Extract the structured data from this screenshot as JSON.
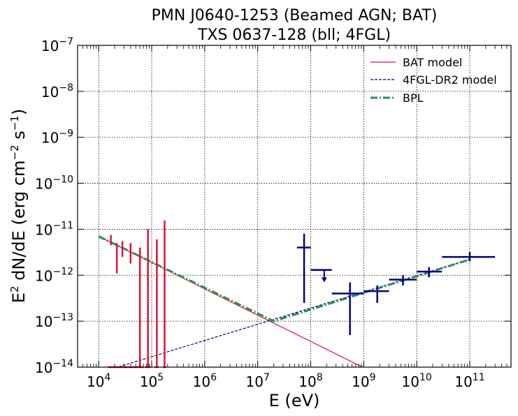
{
  "chart_data": {
    "type": "scatter",
    "title_line1": "PMN J0640-1253 (Beamed AGN; BAT)",
    "title_line2": "TXS 0637-128 (bll; 4FGL)",
    "xlabel": "E (eV)",
    "ylabel_main": "E",
    "ylabel_sup": "2",
    "ylabel_rest": " dN/dE (erg cm",
    "ylabel_sup2": "−2",
    "ylabel_rest2": " s",
    "ylabel_sup3": "−1",
    "ylabel_end": ")",
    "xscale": "log",
    "yscale": "log",
    "xlim": [
      4000,
      600000000000
    ],
    "ylim": [
      1e-14,
      1e-07
    ],
    "grid": true,
    "legend_position": "top-right",
    "x_ticks": [
      {
        "value": 10000,
        "base": "10",
        "exp": "4"
      },
      {
        "value": 100000,
        "base": "10",
        "exp": "5"
      },
      {
        "value": 1000000,
        "base": "10",
        "exp": "6"
      },
      {
        "value": 10000000,
        "base": "10",
        "exp": "7"
      },
      {
        "value": 100000000,
        "base": "10",
        "exp": "8"
      },
      {
        "value": 1000000000,
        "base": "10",
        "exp": "9"
      },
      {
        "value": 10000000000,
        "base": "10",
        "exp": "10"
      },
      {
        "value": 100000000000,
        "base": "10",
        "exp": "11"
      }
    ],
    "y_ticks": [
      {
        "value": 1e-14,
        "base": "10",
        "exp": "−14"
      },
      {
        "value": 1e-13,
        "base": "10",
        "exp": "−13"
      },
      {
        "value": 1e-12,
        "base": "10",
        "exp": "−12"
      },
      {
        "value": 1e-11,
        "base": "10",
        "exp": "−11"
      },
      {
        "value": 1e-10,
        "base": "10",
        "exp": "−10"
      },
      {
        "value": 1e-09,
        "base": "10",
        "exp": "−9"
      },
      {
        "value": 1e-08,
        "base": "10",
        "exp": "−8"
      },
      {
        "value": 1e-07,
        "base": "10",
        "exp": "−7"
      }
    ],
    "colors": {
      "bat": "#dc143c",
      "fermi": "#000080",
      "bpl": "#2e8b57"
    },
    "series": [
      {
        "name": "BAT model",
        "kind": "line",
        "style": "solid",
        "color": "#dc143c",
        "x": [
          10000,
          100000000000
        ],
        "y": [
          7e-12,
          7e-16
        ]
      },
      {
        "name": "4FGL-DR2 model",
        "kind": "line",
        "style": "dashed",
        "color": "#000080",
        "x": [
          10000,
          100000000000
        ],
        "y": [
          7.5e-15,
          2.2e-12
        ]
      },
      {
        "name": "BPL",
        "kind": "line",
        "style": "dashdot",
        "color": "#2e8b57",
        "x": [
          10000,
          20000000,
          100000000000
        ],
        "y": [
          7e-12,
          1e-13,
          2.2e-12
        ]
      }
    ],
    "bat_points": [
      {
        "x": 17000,
        "y": 6e-12,
        "xlo": 15000,
        "xhi": 20000,
        "ylo": 4.5e-12,
        "yhi": 7.5e-12
      },
      {
        "x": 22000,
        "y": 3e-12,
        "xlo": 20000,
        "xhi": 24000,
        "ylo": 1.1e-12,
        "yhi": 5e-12
      },
      {
        "x": 28000,
        "y": 4e-12,
        "xlo": 24000,
        "xhi": 35000,
        "ylo": 2.5e-12,
        "yhi": 5.5e-12
      },
      {
        "x": 40000,
        "y": 3.3e-12,
        "xlo": 35000,
        "xhi": 50000,
        "ylo": 1.8e-12,
        "yhi": 5e-12
      },
      {
        "x": 60000,
        "y": 1.8e-12,
        "xlo": 50000,
        "xhi": 70000,
        "ylo": 1e-14,
        "yhi": 4e-12
      },
      {
        "x": 85000,
        "y": 6e-12,
        "xlo": 75000,
        "xhi": 95000,
        "ylo": 1e-14,
        "yhi": 1e-11
      },
      {
        "x": 125000,
        "y": 1e-14,
        "xlo": 115000,
        "xhi": 135000,
        "ylo": 1e-14,
        "yhi": 6e-12
      },
      {
        "x": 175000,
        "y": 1e-14,
        "xlo": 165000,
        "xhi": 185000,
        "ylo": 1e-14,
        "yhi": 1.55e-11
      }
    ],
    "fermi_points": [
      {
        "x": 75000000,
        "y": 4e-12,
        "xlo": 55000000,
        "xhi": 100000000,
        "ylo": 2.5e-13,
        "yhi": 8e-12
      },
      {
        "x": 550000000,
        "y": 4e-13,
        "xlo": 250000000,
        "xhi": 1000000000,
        "ylo": 5e-14,
        "yhi": 7e-13
      },
      {
        "x": 1800000000,
        "y": 4.5e-13,
        "xlo": 1000000000,
        "xhi": 3000000000,
        "ylo": 2.5e-13,
        "yhi": 6e-13
      },
      {
        "x": 5500000000,
        "y": 8e-13,
        "xlo": 3000000000,
        "xhi": 10000000000,
        "ylo": 6e-13,
        "yhi": 1e-12
      },
      {
        "x": 17000000000,
        "y": 1.2e-12,
        "xlo": 10000000000,
        "xhi": 30000000000,
        "ylo": 9e-13,
        "yhi": 1.5e-12
      },
      {
        "x": 100000000000,
        "y": 2.5e-12,
        "xlo": 30000000000,
        "xhi": 300000000000,
        "ylo": 2e-12,
        "yhi": 3.2e-12
      }
    ],
    "fermi_upper_limits": [
      {
        "x": 180000000,
        "y": 1.3e-12,
        "xlo": 100000000,
        "xhi": 250000000,
        "arrow_to": 7e-13
      }
    ]
  }
}
